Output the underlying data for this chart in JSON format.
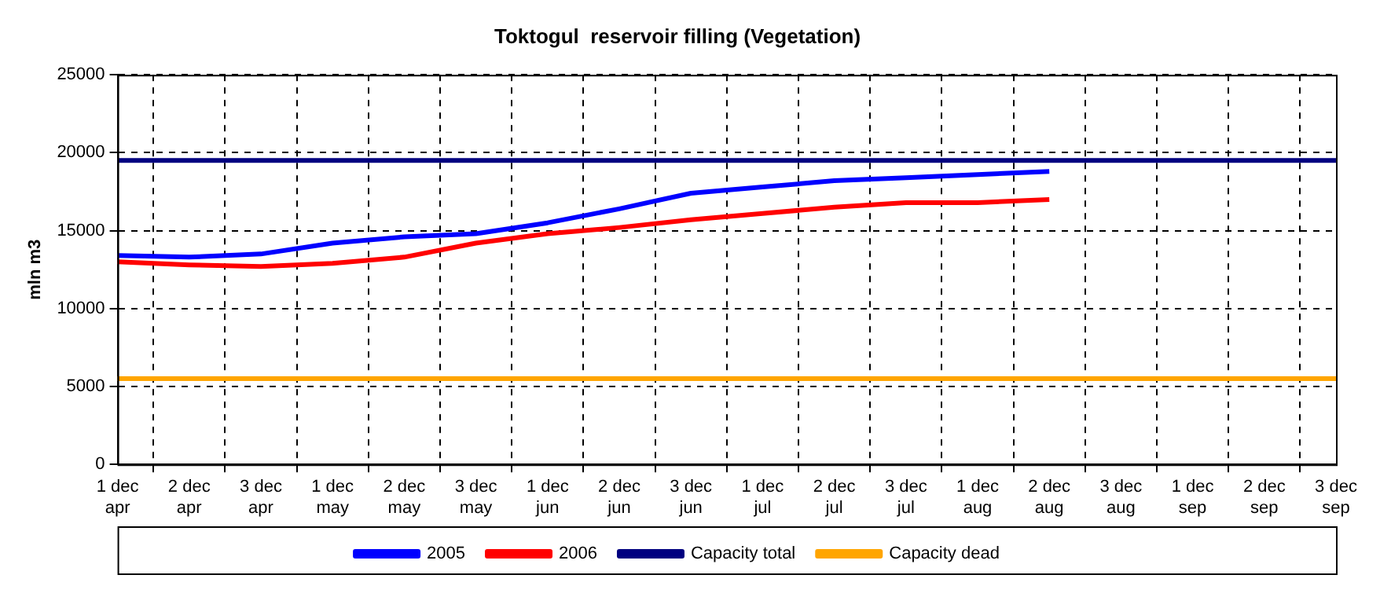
{
  "chart_data": {
    "type": "line",
    "title": "Toktogul  reservoir filling (Vegetation)",
    "ylabel": "mln m3",
    "categories": [
      "1 dec\napr",
      "2 dec\napr",
      "3 dec\napr",
      "1 dec\nmay",
      "2 dec\nmay",
      "3 dec\nmay",
      "1 dec\njun",
      "2 dec\njun",
      "3 dec\njun",
      "1 dec\njul",
      "2 dec\njul",
      "3 dec\njul",
      "1 dec\naug",
      "2 dec\naug",
      "3 dec\naug",
      "1 dec\nsep",
      "2 dec\nsep",
      "3 dec\nsep"
    ],
    "series": [
      {
        "name": "2005",
        "color": "#0000ff",
        "values": [
          13400,
          13300,
          13500,
          14200,
          14600,
          14800,
          15500,
          16400,
          17400,
          17800,
          18200,
          18400,
          18600,
          18800,
          null,
          null,
          null,
          null
        ]
      },
      {
        "name": "2006",
        "color": "#ff0000",
        "values": [
          13000,
          12800,
          12700,
          12900,
          13300,
          14200,
          14800,
          15200,
          15700,
          16100,
          16500,
          16800,
          16800,
          17000,
          null,
          null,
          null,
          null
        ]
      },
      {
        "name": "Capacity total",
        "color": "#000080",
        "values": [
          19500,
          19500,
          19500,
          19500,
          19500,
          19500,
          19500,
          19500,
          19500,
          19500,
          19500,
          19500,
          19500,
          19500,
          19500,
          19500,
          19500,
          19500
        ]
      },
      {
        "name": "Capacity dead",
        "color": "#ffa500",
        "values": [
          5500,
          5500,
          5500,
          5500,
          5500,
          5500,
          5500,
          5500,
          5500,
          5500,
          5500,
          5500,
          5500,
          5500,
          5500,
          5500,
          5500,
          5500
        ]
      }
    ],
    "ylim": [
      0,
      25000
    ],
    "yticks": [
      0,
      5000,
      10000,
      15000,
      20000,
      25000
    ],
    "grid": true,
    "legend": "bottom",
    "marker": "none",
    "line_style": "solid"
  }
}
